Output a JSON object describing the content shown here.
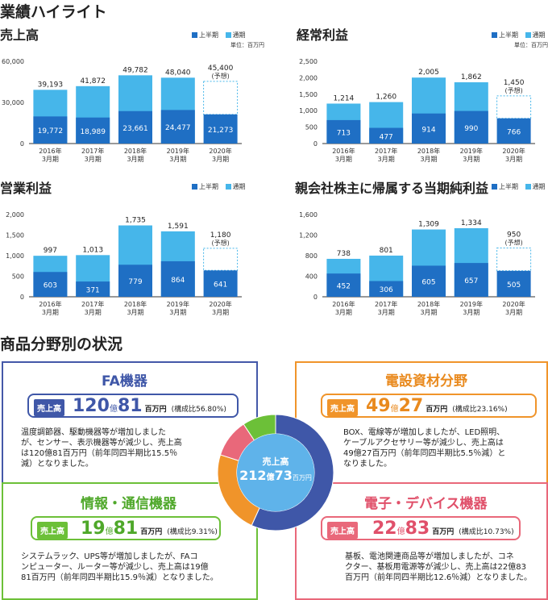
{
  "page": {
    "title": "業績ハイライト",
    "legend_h1": "上半期",
    "legend_full": "通期",
    "unit": "単位：百万円",
    "colors": {
      "h1": "#1f6fc4",
      "full": "#46b6ea"
    }
  },
  "charts": {
    "sales": {
      "title": "売上高",
      "chart_data": {
        "type": "bar",
        "title": "売上高",
        "categories": [
          "2016年\n3月期",
          "2017年\n3月期",
          "2018年\n3月期",
          "2019年\n3月期",
          "2020年\n3月期"
        ],
        "yticks": [
          "60,000",
          "30,000",
          "0"
        ],
        "ylim": [
          0,
          60000
        ],
        "series": [
          {
            "name": "通期",
            "values": [
              39193,
              41872,
              49782,
              48040,
              45400
            ]
          },
          {
            "name": "上半期",
            "values": [
              19772,
              18989,
              23661,
              24477,
              21273
            ]
          }
        ],
        "top_labels": [
          "39,193",
          "41,872",
          "49,782",
          "48,040",
          "45,400"
        ],
        "h1_labels": [
          "19,772",
          "18,989",
          "23,661",
          "24,477",
          "21,273"
        ],
        "forecast_note": "(予想)"
      }
    },
    "ordinary": {
      "title": "経常利益",
      "chart_data": {
        "type": "bar",
        "title": "経常利益",
        "categories": [
          "2016年\n3月期",
          "2017年\n3月期",
          "2018年\n3月期",
          "2019年\n3月期",
          "2020年\n3月期"
        ],
        "yticks": [
          "2,500",
          "2,000",
          "1,500",
          "1,000",
          "500",
          "0"
        ],
        "ylim": [
          0,
          2500
        ],
        "series": [
          {
            "name": "通期",
            "values": [
              1214,
              1260,
              2005,
              1862,
              1450
            ]
          },
          {
            "name": "上半期",
            "values": [
              713,
              477,
              914,
              990,
              766
            ]
          }
        ],
        "top_labels": [
          "1,214",
          "1,260",
          "2,005",
          "1,862",
          "1,450"
        ],
        "h1_labels": [
          "713",
          "477",
          "914",
          "990",
          "766"
        ],
        "forecast_note": "(予想)"
      }
    },
    "operating": {
      "title": "営業利益",
      "chart_data": {
        "type": "bar",
        "title": "営業利益",
        "categories": [
          "2016年\n3月期",
          "2017年\n3月期",
          "2018年\n3月期",
          "2019年\n3月期",
          "2020年\n3月期"
        ],
        "yticks": [
          "2,000",
          "1,500",
          "1,000",
          "500",
          "0"
        ],
        "ylim": [
          0,
          2000
        ],
        "series": [
          {
            "name": "通期",
            "values": [
              997,
              1013,
              1735,
              1591,
              1180
            ]
          },
          {
            "name": "上半期",
            "values": [
              603,
              371,
              779,
              864,
              641
            ]
          }
        ],
        "top_labels": [
          "997",
          "1,013",
          "1,735",
          "1,591",
          "1,180"
        ],
        "h1_labels": [
          "603",
          "371",
          "779",
          "864",
          "641"
        ],
        "forecast_note": "(予想)"
      }
    },
    "net": {
      "title": "親会社株主に帰属する当期純利益",
      "chart_data": {
        "type": "bar",
        "title": "親会社株主に帰属する当期純利益",
        "categories": [
          "2016年\n3月期",
          "2017年\n3月期",
          "2018年\n3月期",
          "2019年\n3月期",
          "2020年\n3月期"
        ],
        "yticks": [
          "1,600",
          "1,200",
          "800",
          "400",
          "0"
        ],
        "ylim": [
          0,
          1600
        ],
        "series": [
          {
            "name": "通期",
            "values": [
              738,
              801,
              1309,
              1334,
              950
            ]
          },
          {
            "name": "上半期",
            "values": [
              452,
              306,
              605,
              657,
              505
            ]
          }
        ],
        "top_labels": [
          "738",
          "801",
          "1,309",
          "1,334",
          "950"
        ],
        "h1_labels": [
          "452",
          "306",
          "605",
          "657",
          "505"
        ],
        "forecast_note": "(予想)"
      }
    }
  },
  "segments": {
    "title": "商品分野別の状況",
    "sales_tag": "売上高",
    "unit": "百万円",
    "fa": {
      "title": "FA機器",
      "oku": "120",
      "oku_unit": "億",
      "man": "81",
      "ratio": "(構成比56.80%)",
      "lines": [
        "温度調節器、駆動機器等が増加しました",
        "が、センサー、表示機器等が減少し、売上高",
        "は120億81百万円（前年同四半期比15.5％",
        "減）となりました。"
      ]
    },
    "elec": {
      "title": "電設資材分野",
      "oku": "49",
      "oku_unit": "億",
      "man": "27",
      "ratio": "(構成比23.16%)",
      "lines": [
        "BOX、電線等が増加しましたが、LED照明、",
        "ケーブルアクセサリー等が減少し、売上高は",
        "49億27百万円（前年同四半期比5.5％減）と",
        "なりました。"
      ]
    },
    "info": {
      "title": "情報・通信機器",
      "oku": "19",
      "oku_unit": "億",
      "man": "81",
      "ratio": "(構成比9.31%)",
      "lines": [
        "システムラック、UPS等が増加しましたが、FAコ",
        "ンピューター、ルーター等が減少し、売上高は19億",
        "81百万円（前年同四半期比15.9％減）となりました。"
      ]
    },
    "device": {
      "title": "電子・デバイス機器",
      "oku": "22",
      "oku_unit": "億",
      "man": "83",
      "ratio": "(構成比10.73%)",
      "lines": [
        "基板、電池関連商品等が増加しましたが、コネ",
        "クター、基板用電源等が減少し、売上高は22億83",
        "百万円（前年同四半期比12.6％減）となりました。"
      ]
    },
    "donut": {
      "label": "売上高",
      "oku": "212",
      "oku_unit": "億",
      "man": "73",
      "unit": "百万円",
      "chart_data": {
        "type": "pie",
        "labels": [
          "FA機器",
          "電設資材分野",
          "電子・デバイス機器",
          "情報・通信機器"
        ],
        "values": [
          56.8,
          23.16,
          10.73,
          9.31
        ],
        "colors": [
          "#3f57a8",
          "#f0942a",
          "#e9687a",
          "#6cc038"
        ]
      }
    }
  }
}
